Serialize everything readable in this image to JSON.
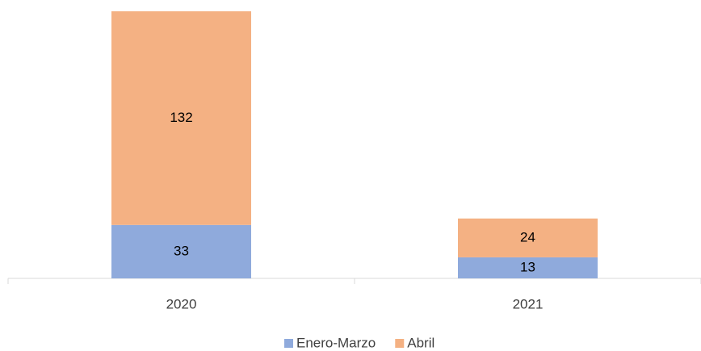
{
  "chart_data": {
    "type": "stacked_bar",
    "categories": [
      "2020",
      "2021"
    ],
    "series": [
      {
        "name": "Enero-Marzo",
        "color": "#8faadc",
        "values": [
          33,
          13
        ]
      },
      {
        "name": "Abril",
        "color": "#f4b183",
        "values": [
          132,
          24
        ]
      }
    ],
    "legend": "bottom"
  }
}
